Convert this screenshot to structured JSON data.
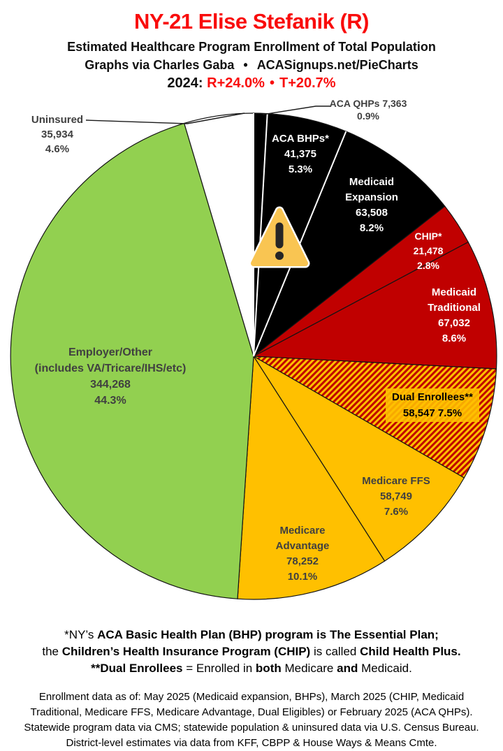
{
  "header": {
    "title": "NY-21 Elise Stefanik (R)",
    "subtitle": "Estimated Healthcare Program Enrollment of Total Population",
    "credit_left": "Graphs via Charles Gaba",
    "credit_bullet": "•",
    "credit_right": "ACASignups.net/PieCharts",
    "year_label": "2024:",
    "lean_r": "R+24.0%",
    "lean_bullet": "•",
    "lean_t": "T+20.7%"
  },
  "colors": {
    "title_red": "#f90c0c",
    "black_slice": "#000000",
    "red_slice": "#c00000",
    "gold_slice": "#ffc000",
    "green_slice": "#92d050",
    "uninsured_white": "#ffffff",
    "label_gray": "#404040",
    "warning_yellow": "#f9c552"
  },
  "chart_data": {
    "type": "pie",
    "title": "Estimated Healthcare Program Enrollment of Total Population",
    "start": "top",
    "direction": "clockwise",
    "slices": [
      {
        "name": "ACA QHPs",
        "value": 7363,
        "value_label": "7,363",
        "pct": 0.9,
        "pct_label": "0.9%",
        "color": "#000000",
        "edge": "white",
        "label_lines": [
          "ACA QHPs 7,363",
          "0.9%"
        ]
      },
      {
        "name": "ACA BHPs*",
        "value": 41375,
        "value_label": "41,375",
        "pct": 5.3,
        "pct_label": "5.3%",
        "color": "#000000",
        "edge": "white",
        "label_lines": [
          "ACA BHPs*",
          "41,375",
          "5.3%"
        ]
      },
      {
        "name": "Medicaid Expansion",
        "value": 63508,
        "value_label": "63,508",
        "pct": 8.2,
        "pct_label": "8.2%",
        "color": "#000000",
        "edge": "white",
        "label_lines": [
          "Medicaid",
          "Expansion",
          "63,508",
          "8.2%"
        ]
      },
      {
        "name": "CHIP*",
        "value": 21478,
        "value_label": "21,478",
        "pct": 2.8,
        "pct_label": "2.8%",
        "color": "#c00000",
        "label_lines": [
          "CHIP*",
          "21,478",
          "2.8%"
        ]
      },
      {
        "name": "Medicaid Traditional",
        "value": 67032,
        "value_label": "67,032",
        "pct": 8.6,
        "pct_label": "8.6%",
        "color": "#c00000",
        "label_lines": [
          "Medicaid",
          "Traditional",
          "67,032",
          "8.6%"
        ]
      },
      {
        "name": "Dual Enrollees**",
        "value": 58547,
        "value_label": "58,547",
        "pct": 7.5,
        "pct_label": "7.5%",
        "color": "#c00000",
        "pattern": "red-gold-hatch",
        "pattern_colors": [
          "#c00000",
          "#ffc000"
        ],
        "label_lines": [
          "Dual Enrollees**",
          "58,547 7.5%"
        ]
      },
      {
        "name": "Medicare FFS",
        "value": 58749,
        "value_label": "58,749",
        "pct": 7.6,
        "pct_label": "7.6%",
        "color": "#ffc000",
        "label_lines": [
          "Medicare FFS",
          "58,749",
          "7.6%"
        ]
      },
      {
        "name": "Medicare Advantage",
        "value": 78252,
        "value_label": "78,252",
        "pct": 10.1,
        "pct_label": "10.1%",
        "color": "#ffc000",
        "label_lines": [
          "Medicare",
          "Advantage",
          "78,252",
          "10.1%"
        ]
      },
      {
        "name": "Employer/Other (includes VA/Tricare/IHS/etc)",
        "value": 344268,
        "value_label": "344,268",
        "pct": 44.3,
        "pct_label": "44.3%",
        "color": "#92d050",
        "label_lines": [
          "Employer/Other",
          "(includes VA/Tricare/IHS/etc)",
          "344,268",
          "44.3%"
        ]
      },
      {
        "name": "Uninsured",
        "value": 35934,
        "value_label": "35,934",
        "pct": 4.6,
        "pct_label": "4.6%",
        "color": "#ffffff",
        "label_lines": [
          "Uninsured",
          "35,934",
          "4.6%"
        ]
      }
    ]
  },
  "footnotes": {
    "line1": [
      {
        "t": "*NY’s ",
        "b": 0
      },
      {
        "t": "ACA Basic Health Plan (BHP) program is The Essential Plan;",
        "b": 1
      }
    ],
    "line2": [
      {
        "t": "the ",
        "b": 0
      },
      {
        "t": "Children’s Health Insurance Program (CHIP)",
        "b": 1
      },
      {
        "t": " is called ",
        "b": 0
      },
      {
        "t": "Child Health Plus.",
        "b": 1
      }
    ],
    "line3": [
      {
        "t": "**Dual Enrollees",
        "b": 1
      },
      {
        "t": " = Enrolled in ",
        "b": 0
      },
      {
        "t": "both",
        "b": 1
      },
      {
        "t": " Medicare ",
        "b": 0
      },
      {
        "t": "and",
        "b": 1
      },
      {
        "t": " Medicaid.",
        "b": 0
      }
    ]
  },
  "source_note": {
    "lines": [
      "Enrollment data as of: May 2025 (Medicaid expansion, BHPs), March 2025 (CHIP, Medicaid",
      "Traditional, Medicare FFS, Medicare Advantage, Dual Eligibles) or February 2025 (ACA QHPs).",
      "Statewide program data via CMS; statewide population & uninsured data via U.S. Census Bureau.",
      "District-level estimates via data from KFF, CBPP & House Ways & Means Cmte."
    ]
  }
}
